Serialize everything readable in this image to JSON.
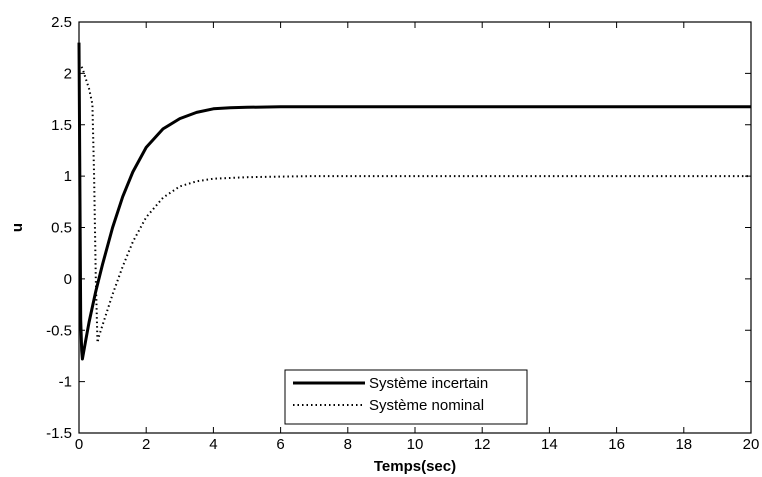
{
  "chart_data": {
    "type": "line",
    "xlabel": "Temps(sec)",
    "ylabel": "u",
    "xlim": [
      0,
      20
    ],
    "ylim": [
      -1.5,
      2.5
    ],
    "xticks": [
      "0",
      "2",
      "4",
      "6",
      "8",
      "10",
      "12",
      "14",
      "16",
      "18",
      "20"
    ],
    "yticks": [
      "-1.5",
      "-1",
      "-0.5",
      "0",
      "0.5",
      "1",
      "1.5",
      "2",
      "2.5"
    ],
    "grid": false,
    "legend_position": "bottom-center",
    "series": [
      {
        "name": "Système incertain",
        "style": "solid",
        "color": "#000000",
        "x": [
          0,
          0.02,
          0.05,
          0.08,
          0.1,
          0.2,
          0.3,
          0.5,
          0.7,
          1.0,
          1.3,
          1.6,
          2.0,
          2.5,
          3.0,
          3.5,
          4.0,
          4.5,
          5.0,
          6.0,
          7.0,
          8.0,
          10.0,
          12.0,
          14.0,
          16.0,
          18.0,
          20.0
        ],
        "y": [
          2.3,
          1.2,
          -0.4,
          -0.7,
          -0.78,
          -0.6,
          -0.42,
          -0.12,
          0.14,
          0.5,
          0.8,
          1.04,
          1.28,
          1.46,
          1.56,
          1.62,
          1.655,
          1.665,
          1.67,
          1.675,
          1.675,
          1.675,
          1.675,
          1.675,
          1.675,
          1.675,
          1.675,
          1.675
        ]
      },
      {
        "name": "Système nominal",
        "style": "dotted",
        "color": "#000000",
        "x": [
          0,
          0.1,
          0.2,
          0.3,
          0.4,
          0.45,
          0.5,
          0.55,
          0.6,
          0.8,
          1.0,
          1.3,
          1.6,
          2.0,
          2.5,
          3.0,
          3.5,
          4.0,
          5.0,
          6.0,
          7.0,
          8.0,
          10.0,
          12.0,
          14.0,
          16.0,
          18.0,
          20.0
        ],
        "y": [
          2.1,
          2.05,
          1.95,
          1.85,
          1.7,
          1.0,
          0.0,
          -0.62,
          -0.55,
          -0.35,
          -0.15,
          0.12,
          0.36,
          0.6,
          0.79,
          0.9,
          0.95,
          0.975,
          0.99,
          0.995,
          1.0,
          1.0,
          1.0,
          1.0,
          1.0,
          1.0,
          1.0,
          1.0
        ]
      }
    ]
  }
}
